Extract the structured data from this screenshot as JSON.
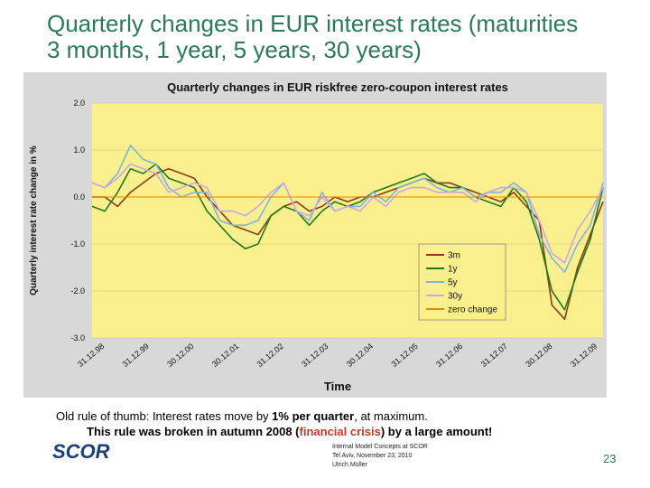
{
  "slide": {
    "title_line1": "Quarterly changes in EUR interest rates (maturities",
    "title_line2": "3 months, 1 year, 5 years, 30 years)",
    "note_line1_a": "Old rule of thumb: Interest rates move by ",
    "note_line1_b": "1% per quarter",
    "note_line1_c": ", at maximum.",
    "note_line2_a": "This rule was broken in autumn 2008 (",
    "note_line2_b": "financial crisis",
    "note_line2_c": ") by a large amount!",
    "footer_line1": "Internal Model Concepts at SCOR",
    "footer_line2": "Tel Aviv, November 23, 2010",
    "footer_line3": "Ulrich Müller",
    "page_number": "23",
    "logo_text": "SCOR"
  },
  "colors": {
    "title": "#2a7a58",
    "plot_background": "#f9ef8c",
    "frame": "#d8d8d8",
    "highlight": "#c0392b"
  },
  "chart_data": {
    "type": "line",
    "title": "Quarterly changes in EUR riskfree zero-coupon interest rates",
    "xlabel": "Time",
    "ylabel": "Quarterly interest rate change in %",
    "ylim": [
      -3.0,
      2.0
    ],
    "yticks": [
      "2.0",
      "1.0",
      "0.0",
      "-1.0",
      "-2.0",
      "-3.0"
    ],
    "xticks": [
      "31.12.98",
      "31.12.99",
      "30.12.00",
      "30.12.01",
      "31.12.02",
      "31.12.03",
      "30.12.04",
      "31.12.05",
      "31.12.06",
      "31.12.07",
      "30.12.08",
      "31.12.09"
    ],
    "grid": "horizontal",
    "legend_position": "bottom-right",
    "series": [
      {
        "name": "3m",
        "color": "#8b3a1a",
        "values": [
          0.0,
          0.0,
          -0.2,
          0.1,
          0.3,
          0.5,
          0.6,
          0.5,
          0.4,
          0.0,
          -0.3,
          -0.6,
          -0.7,
          -0.8,
          -0.4,
          -0.2,
          -0.1,
          -0.3,
          -0.2,
          0.0,
          -0.1,
          0.0,
          0.0,
          0.1,
          0.2,
          0.3,
          0.4,
          0.3,
          0.3,
          0.2,
          0.1,
          0.0,
          -0.1,
          0.1,
          -0.2,
          -0.5,
          -2.3,
          -2.6,
          -1.5,
          -0.8,
          -0.1
        ]
      },
      {
        "name": "1y",
        "color": "#1f7a1f",
        "values": [
          -0.2,
          -0.3,
          0.1,
          0.6,
          0.5,
          0.7,
          0.4,
          0.3,
          0.2,
          -0.3,
          -0.6,
          -0.9,
          -1.1,
          -1.0,
          -0.4,
          -0.2,
          -0.3,
          -0.6,
          -0.3,
          -0.1,
          -0.2,
          -0.1,
          0.1,
          0.2,
          0.3,
          0.4,
          0.5,
          0.3,
          0.2,
          0.2,
          0.0,
          -0.1,
          -0.2,
          0.2,
          -0.1,
          -0.9,
          -2.0,
          -2.4,
          -1.6,
          -0.9,
          0.2
        ]
      },
      {
        "name": "5y",
        "color": "#7fb3e0",
        "values": [
          0.3,
          0.2,
          0.5,
          1.1,
          0.8,
          0.7,
          0.2,
          0.0,
          0.1,
          0.1,
          -0.5,
          -0.6,
          -0.6,
          -0.5,
          0.0,
          0.3,
          -0.3,
          -0.5,
          0.1,
          -0.3,
          -0.2,
          -0.2,
          0.1,
          -0.1,
          0.2,
          0.3,
          0.4,
          0.2,
          0.1,
          0.2,
          0.0,
          0.1,
          0.1,
          0.3,
          0.1,
          -0.8,
          -1.3,
          -1.6,
          -1.0,
          -0.6,
          0.3
        ]
      },
      {
        "name": "30y",
        "color": "#c8a8e8",
        "values": [
          0.3,
          0.2,
          0.4,
          0.7,
          0.6,
          0.5,
          0.1,
          0.2,
          0.3,
          0.2,
          -0.3,
          -0.3,
          -0.4,
          -0.2,
          0.1,
          0.3,
          -0.3,
          -0.4,
          0.0,
          -0.3,
          -0.2,
          -0.3,
          0.0,
          -0.2,
          0.1,
          0.2,
          0.2,
          0.1,
          0.1,
          0.1,
          -0.1,
          0.1,
          0.2,
          0.2,
          0.1,
          -0.5,
          -1.2,
          -1.4,
          -0.7,
          -0.3,
          0.2
        ]
      },
      {
        "name": "zero change",
        "color": "#e08a00",
        "values": [
          0.0,
          0.0
        ]
      }
    ]
  }
}
